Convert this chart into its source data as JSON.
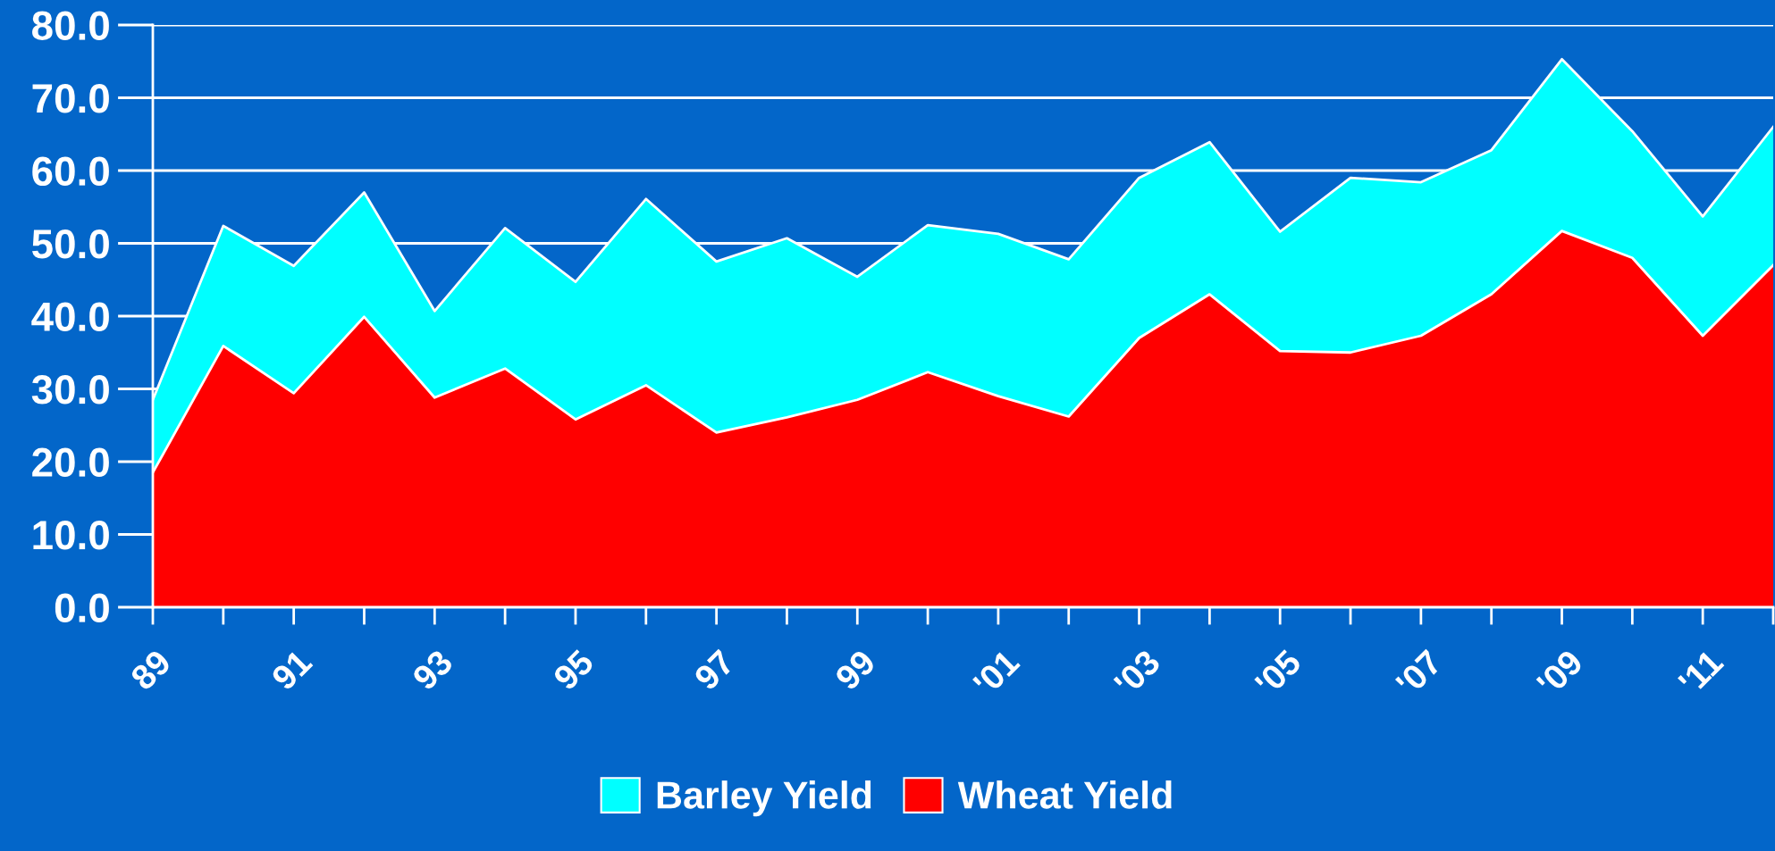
{
  "chart_data": {
    "type": "area",
    "categories": [
      "89",
      null,
      "91",
      null,
      "93",
      null,
      "95",
      null,
      "97",
      null,
      "99",
      null,
      "'01",
      null,
      "'03",
      null,
      "'05",
      null,
      "'07",
      null,
      "'09",
      null,
      "'11",
      null
    ],
    "series": [
      {
        "name": "Barley Yield",
        "color": "#00ffff",
        "values": [
          28.5,
          52.4,
          46.9,
          57.0,
          40.7,
          52.1,
          44.7,
          56.1,
          47.5,
          50.7,
          45.4,
          52.5,
          51.3,
          47.8,
          59.0,
          63.9,
          51.6,
          59.0,
          58.4,
          62.8,
          75.3,
          65.4,
          53.7,
          66.0
        ]
      },
      {
        "name": "Wheat Yield",
        "color": "#ff0000",
        "values": [
          18.5,
          35.9,
          29.4,
          39.9,
          28.8,
          32.8,
          25.8,
          30.5,
          24.0,
          26.1,
          28.5,
          32.3,
          29.0,
          26.2,
          37.0,
          43.0,
          35.2,
          35.0,
          37.3,
          43.0,
          51.7,
          48.0,
          37.3,
          47.0
        ]
      }
    ],
    "ylim": [
      0,
      80
    ],
    "yticks": [
      {
        "value": 0,
        "label": "0.0"
      },
      {
        "value": 10,
        "label": "10.0"
      },
      {
        "value": 20,
        "label": "20.0"
      },
      {
        "value": 30,
        "label": "30.0"
      },
      {
        "value": 40,
        "label": "40.0"
      },
      {
        "value": 50,
        "label": "50.0"
      },
      {
        "value": 60,
        "label": "60.0"
      },
      {
        "value": 70,
        "label": "70.0"
      },
      {
        "value": 80,
        "label": "80.0"
      }
    ],
    "grid": "y",
    "legend": "bottom"
  }
}
